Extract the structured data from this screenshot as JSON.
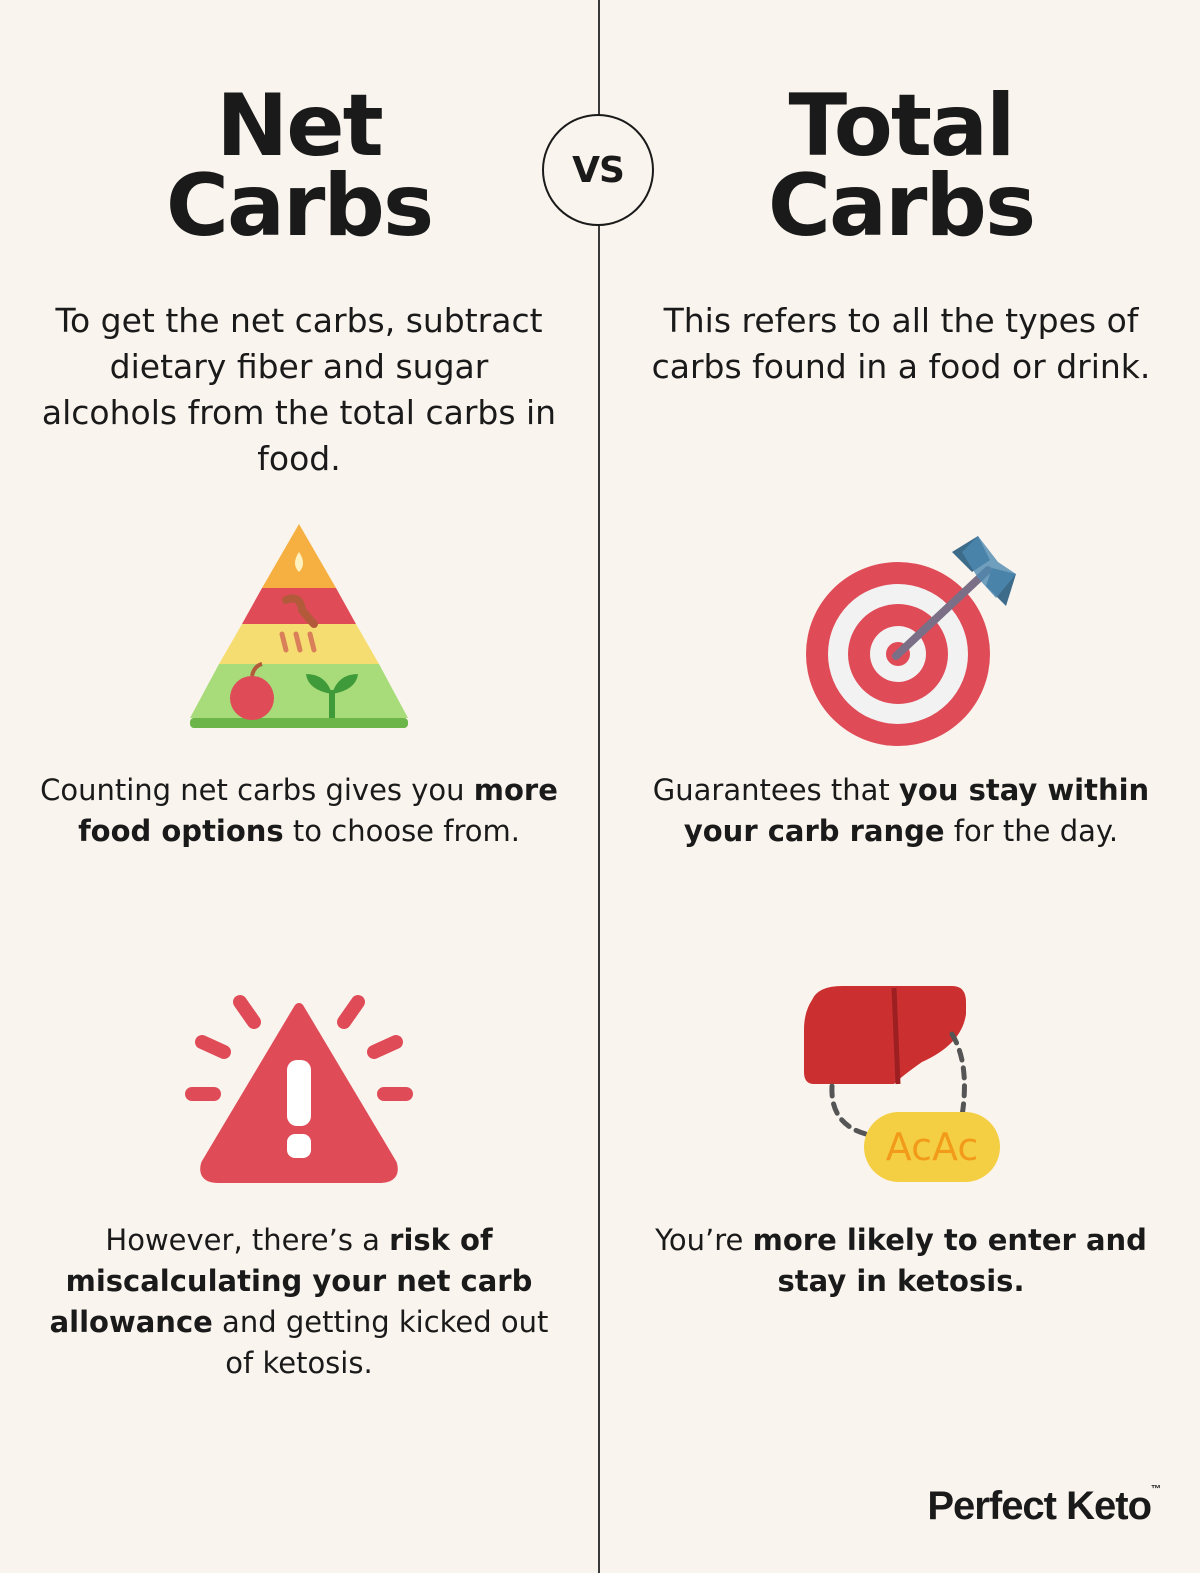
{
  "vs_label": "VS",
  "left": {
    "title_line1": "Net",
    "title_line2": "Carbs",
    "description": "To get the net carbs, subtract dietary fiber and sugar alcohols from the total carbs in food.",
    "point1": {
      "pre": "Counting net carbs gives you ",
      "bold": "more food options",
      "post": " to choose from."
    },
    "point2": {
      "pre": "However, there’s a ",
      "bold": "risk of miscalculating your net carb allowance",
      "post": " and getting kicked out of ketosis."
    },
    "icon1": "food-pyramid-icon",
    "icon2": "warning-alert-icon"
  },
  "right": {
    "title_line1": "Total",
    "title_line2": "Carbs",
    "description": "This refers to all the types of carbs found in a food or drink.",
    "point1": {
      "pre": "Guarantees that ",
      "bold": "you stay within your carb range",
      "post": " for the day."
    },
    "point2": {
      "pre": "You’re ",
      "bold": "more likely to enter and stay in ketosis.",
      "post": ""
    },
    "icon1": "target-arrow-icon",
    "icon2": "liver-ketone-icon",
    "ketone_label": "AcAc"
  },
  "brand": {
    "name": "Perfect Keto",
    "mark": "™"
  },
  "colors": {
    "background": "#faf4ee",
    "text": "#1a1a1a",
    "red": "#e04b58",
    "orange": "#f6b042",
    "green": "#7fc15a",
    "yellow": "#f6dd71"
  }
}
